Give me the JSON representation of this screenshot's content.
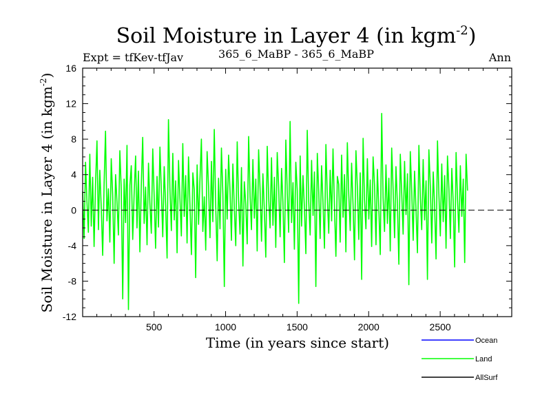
{
  "header": {
    "title_main": "Soil Moisture in Layer 4 (in kgm",
    "title_sup": "-2",
    "title_close": ")",
    "left": "Expt = tfKev-tfJav",
    "center": "365_6_MaBP - 365_6_MaBP",
    "right": "Ann"
  },
  "chart_data": {
    "type": "line",
    "xlabel": "Time (in years since start)",
    "ylabel_main": "Soil Moisture in Layer 4 (in kgm",
    "ylabel_sup": "-2",
    "ylabel_close": ")",
    "xlim": [
      1,
      3000
    ],
    "ylim": [
      -12,
      16
    ],
    "x_ticks": [
      500,
      1000,
      1500,
      2000,
      2500
    ],
    "y_ticks": [
      -12,
      -8,
      -4,
      0,
      4,
      8,
      12,
      16
    ],
    "zero_line": true,
    "grid": false,
    "legend_position": "bottom-right",
    "legend": [
      {
        "label": "Ocean",
        "color": "#0000ff"
      },
      {
        "label": "Land",
        "color": "#00ff00"
      },
      {
        "label": "AllSurf",
        "color": "#000000"
      }
    ],
    "series": [
      {
        "name": "Land",
        "color": "#00ff00",
        "x_step": 10,
        "x_start": 1,
        "values": [
          2.1,
          -3.2,
          5.4,
          1.0,
          -2.5,
          6.3,
          -1.8,
          3.7,
          -4.1,
          2.9,
          7.8,
          -2.2,
          4.5,
          0.3,
          -5.1,
          3.1,
          8.9,
          -1.2,
          2.4,
          -3.6,
          5.8,
          1.7,
          -6.0,
          4.0,
          0.9,
          -2.8,
          6.7,
          2.2,
          -10.0,
          3.5,
          -1.4,
          7.3,
          -11.2,
          2.8,
          5.0,
          -3.3,
          1.9,
          6.1,
          -2.0,
          4.4,
          -4.7,
          3.0,
          8.2,
          -1.5,
          2.6,
          -3.9,
          5.3,
          0.8,
          -2.6,
          6.9,
          1.4,
          -4.3,
          3.8,
          -1.9,
          7.1,
          2.0,
          -3.0,
          4.9,
          0.5,
          -5.4,
          10.2,
          2.5,
          -2.3,
          6.4,
          -1.1,
          3.3,
          -4.8,
          5.6,
          1.2,
          -2.9,
          7.5,
          -0.7,
          3.9,
          -3.7,
          6.0,
          0.6,
          -5.0,
          4.2,
          2.3,
          -7.6,
          5.1,
          -1.6,
          3.4,
          8.0,
          -2.4,
          1.5,
          -4.5,
          6.6,
          2.7,
          -3.1,
          5.5,
          -1.3,
          9.1,
          0.4,
          -5.7,
          3.6,
          -2.1,
          7.0,
          1.8,
          -8.6,
          4.6,
          -1.0,
          6.2,
          2.1,
          -3.4,
          5.2,
          0.2,
          -4.0,
          7.7,
          1.1,
          -2.7,
          4.8,
          -6.3,
          3.2,
          0.7,
          -3.8,
          8.3,
          1.6,
          -2.2,
          5.7,
          -0.9,
          3.5,
          -4.6,
          6.8,
          2.4,
          -3.5,
          4.1,
          0.1,
          -5.3,
          7.2,
          1.3,
          -2.0,
          5.9,
          -1.7,
          3.7,
          -4.2,
          6.5,
          2.6,
          -3.0,
          4.7,
          0.9,
          -5.9,
          7.9,
          1.9,
          -2.5,
          10.0,
          -1.4,
          3.1,
          -4.4,
          5.4,
          2.2,
          -10.5,
          6.1,
          -1.8,
          3.9,
          0.3,
          -4.9,
          9.0,
          1.0,
          -2.8,
          5.6,
          -0.6,
          4.3,
          -8.6,
          6.4,
          2.0,
          -3.2,
          5.0,
          0.8,
          -4.3,
          7.4,
          1.5,
          -2.6,
          4.5,
          -1.2,
          6.9,
          0.4,
          -5.2,
          3.8,
          2.9,
          -3.6,
          6.2,
          -0.8,
          4.0,
          -4.7,
          7.6,
          1.7,
          -2.3,
          5.3,
          0.6,
          -5.6,
          6.7,
          2.5,
          -3.3,
          4.2,
          -7.8,
          8.1,
          1.2,
          -2.1,
          5.8,
          -1.0,
          3.4,
          -4.1,
          6.0,
          2.8,
          -3.9,
          4.6,
          0.2,
          -5.0,
          10.9,
          1.4,
          -2.4,
          5.1,
          -1.5,
          3.6,
          -4.6,
          7.0,
          2.3,
          -3.1,
          4.9,
          0.7,
          -6.1,
          6.3,
          1.8,
          -2.7,
          5.5,
          -0.5,
          4.1,
          -8.4,
          6.6,
          2.1,
          -3.4,
          4.4,
          0.1,
          -4.8,
          7.3,
          1.3,
          -2.2,
          5.7,
          -1.1,
          3.3,
          -7.8,
          6.8,
          2.7,
          -3.7,
          4.3,
          0.5,
          -5.5,
          7.8,
          1.6,
          -2.9,
          5.2,
          -1.3,
          3.9,
          -4.3,
          6.1,
          2.4,
          -3.2,
          4.7,
          0.9,
          -6.4,
          6.5,
          1.1,
          -2.5,
          5.0,
          -0.7,
          3.5,
          -5.9,
          6.3,
          2.2
        ]
      }
    ]
  }
}
